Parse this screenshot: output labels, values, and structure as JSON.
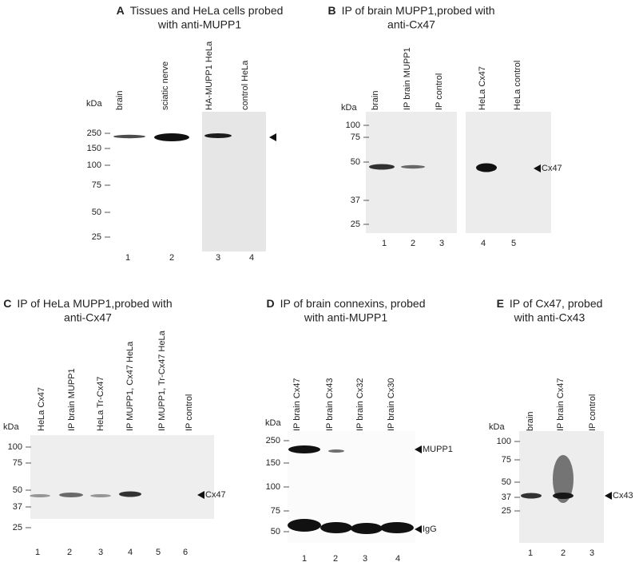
{
  "panels": [
    {
      "letter": "A",
      "title": [
        "Tissues and HeLa cells probed",
        "with anti-MUPP1"
      ],
      "unit": "kDa",
      "markers": [
        "250",
        "150",
        "100",
        "75",
        "50",
        "25"
      ],
      "lanes": [
        "brain",
        "sciatic nerve",
        "HA-MUPP1 HeLa",
        "control HeLa"
      ],
      "lane_numbers": [
        "1",
        "2",
        "3",
        "4"
      ],
      "arrows": []
    },
    {
      "letter": "B",
      "title": [
        "IP of brain MUPP1,probed with",
        "anti-Cx47"
      ],
      "unit": "kDa",
      "markers": [
        "100",
        "75",
        "50",
        "37",
        "25"
      ],
      "lanes": [
        "brain",
        "IP brain MUPP1",
        "IP control",
        "HeLa Cx47",
        "HeLa control"
      ],
      "lane_numbers": [
        "1",
        "2",
        "3",
        "4",
        "5"
      ],
      "arrows": [
        "Cx47"
      ]
    },
    {
      "letter": "C",
      "title": [
        "IP of HeLa MUPP1,probed with",
        "anti-Cx47"
      ],
      "unit": "kDa",
      "markers": [
        "100",
        "75",
        "50",
        "37",
        "25"
      ],
      "lanes": [
        "HeLa Cx47",
        "IP brain MUPP1",
        "HeLa Tr-Cx47",
        "IP MUPP1, Cx47 HeLa",
        "IP MUPP1, Tr-Cx47 HeLa",
        "IP control"
      ],
      "lane_numbers": [
        "1",
        "2",
        "3",
        "4",
        "5",
        "6"
      ],
      "arrows": [
        "Cx47"
      ]
    },
    {
      "letter": "D",
      "title": [
        "IP of brain connexins, probed",
        "with anti-MUPP1"
      ],
      "unit": "kDa",
      "markers": [
        "250",
        "150",
        "100",
        "75",
        "50"
      ],
      "lanes": [
        "IP brain Cx47",
        "IP brain Cx43",
        "IP brain Cx32",
        "IP brain Cx30"
      ],
      "lane_numbers": [
        "1",
        "2",
        "3",
        "4"
      ],
      "arrows": [
        "MUPP1",
        "IgG"
      ]
    },
    {
      "letter": "E",
      "title": [
        "IP of Cx47, probed",
        "with anti-Cx43"
      ],
      "unit": "kDa",
      "markers": [
        "100",
        "75",
        "50",
        "37",
        "25"
      ],
      "lanes": [
        "brain",
        "IP brain Cx47",
        "IP control"
      ],
      "lane_numbers": [
        "1",
        "2",
        "3"
      ],
      "arrows": [
        "Cx43"
      ]
    }
  ]
}
